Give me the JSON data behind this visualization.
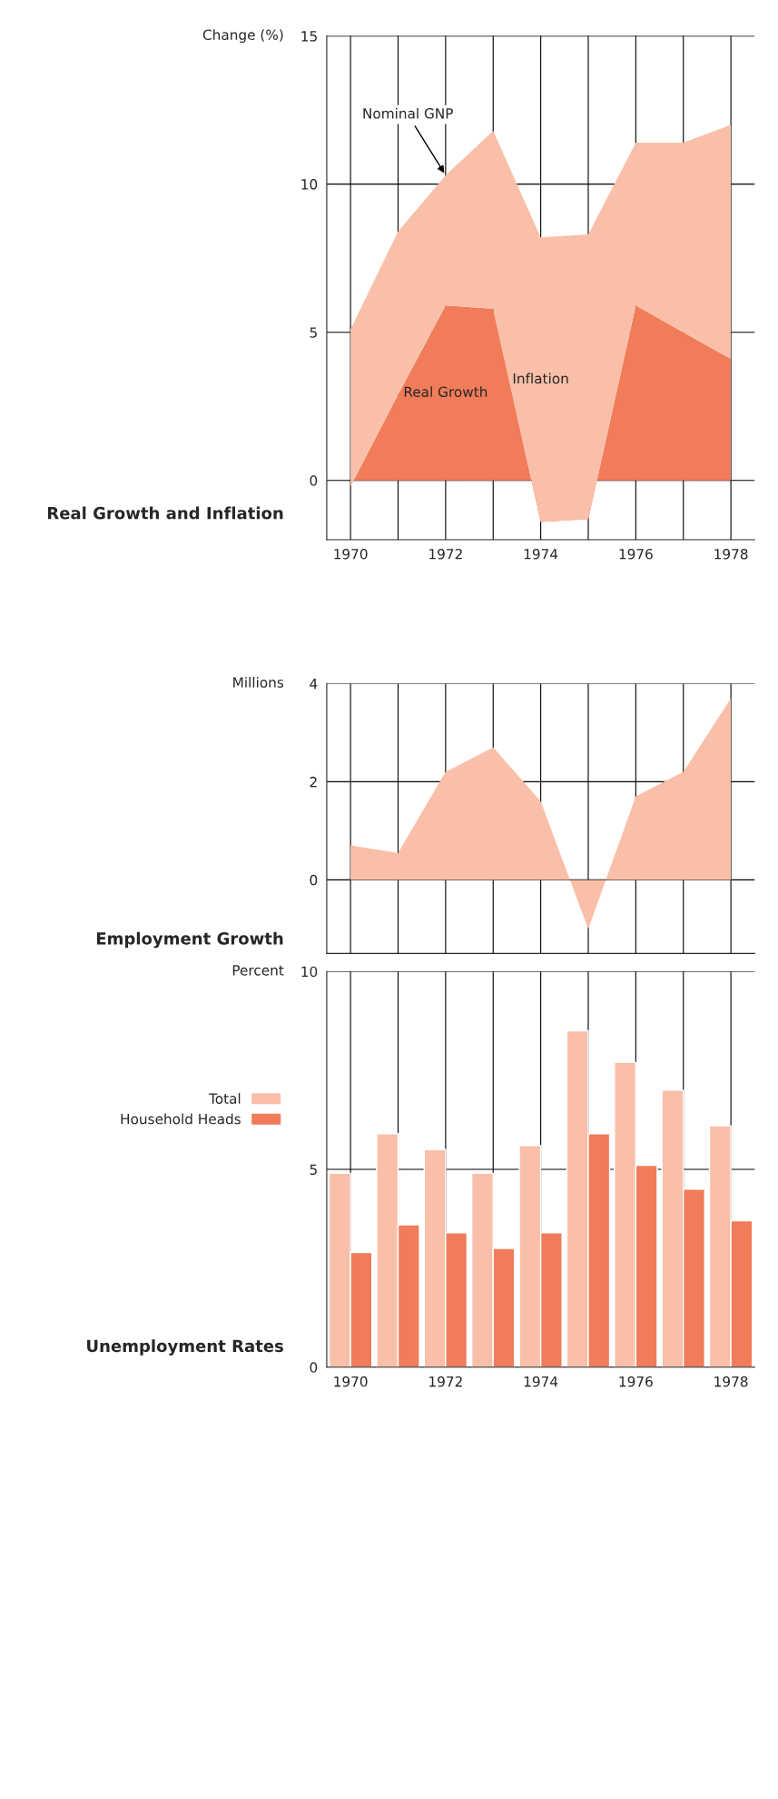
{
  "chart_data": [
    {
      "type": "area",
      "title": "Real Growth and Inflation",
      "ylabel": "Change (%)",
      "stacked": true,
      "categories": [
        "1970",
        null,
        "1972",
        null,
        "1974",
        null,
        "1976",
        null,
        "1978"
      ],
      "series": [
        {
          "name": "Real Growth",
          "color": "#f07c5a",
          "values": [
            -0.2,
            2.9,
            5.9,
            5.8,
            -1.4,
            -1.3,
            5.9,
            5.0,
            4.1
          ]
        },
        {
          "name": "Inflation",
          "color": "#f9bfa8",
          "values": [
            5.3,
            5.5,
            4.4,
            6.0,
            9.6,
            9.6,
            5.5,
            6.4,
            7.9
          ]
        }
      ],
      "ylim": [
        -2,
        15
      ],
      "yticks": [
        0,
        5,
        10,
        15
      ],
      "grid": true,
      "legend": false,
      "annotations": [
        {
          "text": "Nominal GNP",
          "x": "1972",
          "y": 10.3
        }
      ]
    },
    {
      "type": "area",
      "title": "Employment Growth",
      "ylabel": "Millions",
      "categories": [
        null,
        null,
        null,
        null,
        null,
        null,
        null,
        null,
        null
      ],
      "series": [
        {
          "color": "#f9bfa8",
          "values": [
            0.7,
            0.55,
            2.2,
            2.7,
            1.6,
            -1.0,
            1.7,
            2.2,
            3.7
          ]
        }
      ],
      "ylim": [
        -1.5,
        4
      ],
      "yticks": [
        0,
        2,
        4
      ],
      "grid": true,
      "legend": false,
      "tick_labels": "y"
    },
    {
      "type": "bar",
      "title": "Unemployment Rates",
      "ylabel": "Percent",
      "categories": [
        "1970",
        null,
        "1972",
        null,
        "1974",
        null,
        "1976",
        null,
        "1978"
      ],
      "series": [
        {
          "name": "Total",
          "color": "#f9bfa8",
          "values": [
            4.9,
            5.9,
            5.5,
            4.9,
            5.6,
            8.5,
            7.7,
            7.0,
            6.1
          ]
        },
        {
          "name": "Household Heads",
          "color": "#f07c5a",
          "values": [
            2.9,
            3.6,
            3.4,
            3.0,
            3.4,
            5.9,
            5.1,
            4.5,
            3.7
          ]
        }
      ],
      "ylim": [
        0,
        10
      ],
      "yticks": [
        0,
        5,
        10
      ],
      "grid": true,
      "legend": "left"
    }
  ]
}
